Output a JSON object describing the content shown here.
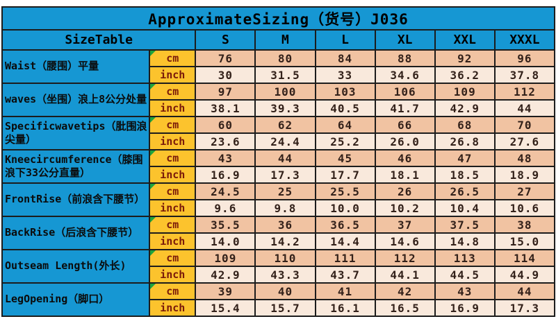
{
  "colors": {
    "blue": "#1697d3",
    "orange": "#fcc32d",
    "peach_cm": "#f1c3a2",
    "peach_inch": "#f9e9dc",
    "unit_text": "#7a1a0a",
    "number_text": "#33211a",
    "green_marker": "#1fa33c",
    "border": "#1c1c1c",
    "page_bg": "#ffffff",
    "label_text": "#0b0b0b"
  },
  "chart_data": {
    "type": "table",
    "title": "ApproximateSizing（货号）J036",
    "header": {
      "size_table_label": "SizeTable",
      "unit_labels": [
        "cm",
        "inch"
      ],
      "sizes": [
        "S",
        "M",
        "L",
        "XL",
        "XXL",
        "XXXL"
      ]
    },
    "rows": [
      {
        "label": "Waist（腰围）平量",
        "cm": [
          "76",
          "80",
          "84",
          "88",
          "92",
          "96"
        ],
        "inch": [
          "30",
          "31.5",
          "33",
          "34.6",
          "36.2",
          "37.8"
        ]
      },
      {
        "label": "waves（坐围）浪上8公分处量",
        "cm": [
          "97",
          "100",
          "103",
          "106",
          "109",
          "112"
        ],
        "inch": [
          "38.1",
          "39.3",
          "40.5",
          "41.7",
          "42.9",
          "44"
        ]
      },
      {
        "label": "Specificwavetips（肶围浪尖量）",
        "cm": [
          "60",
          "62",
          "64",
          "66",
          "68",
          "70"
        ],
        "inch": [
          "23.6",
          "24.4",
          "25.2",
          "26.0",
          "26.8",
          "27.6"
        ]
      },
      {
        "label": "Kneecircumference（膝围浪下33公分直量）",
        "cm": [
          "43",
          "44",
          "45",
          "46",
          "47",
          "48"
        ],
        "inch": [
          "16.9",
          "17.3",
          "17.7",
          "18.1",
          "18.5",
          "18.9"
        ]
      },
      {
        "label": "FrontRise（前浪含下腰节）",
        "cm": [
          "24.5",
          "25",
          "25.5",
          "26",
          "26.5",
          "27"
        ],
        "inch": [
          "9.6",
          "9.8",
          "10.0",
          "10.2",
          "10.4",
          "10.6"
        ]
      },
      {
        "label": "BackRise（后浪含下腰节）",
        "cm": [
          "35.5",
          "36",
          "36.5",
          "37",
          "37.5",
          "38"
        ],
        "inch": [
          "14.0",
          "14.2",
          "14.4",
          "14.6",
          "14.8",
          "15.0"
        ]
      },
      {
        "label": "Outseam Length(外长)",
        "cm": [
          "109",
          "110",
          "111",
          "112",
          "113",
          "114"
        ],
        "inch": [
          "42.9",
          "43.3",
          "43.7",
          "44.1",
          "44.5",
          "44.9"
        ]
      },
      {
        "label": "LegOpening（脚口）",
        "cm": [
          "39",
          "40",
          "41",
          "42",
          "43",
          "44"
        ],
        "inch": [
          "15.4",
          "15.7",
          "16.1",
          "16.5",
          "16.9",
          "17.3"
        ]
      }
    ]
  }
}
